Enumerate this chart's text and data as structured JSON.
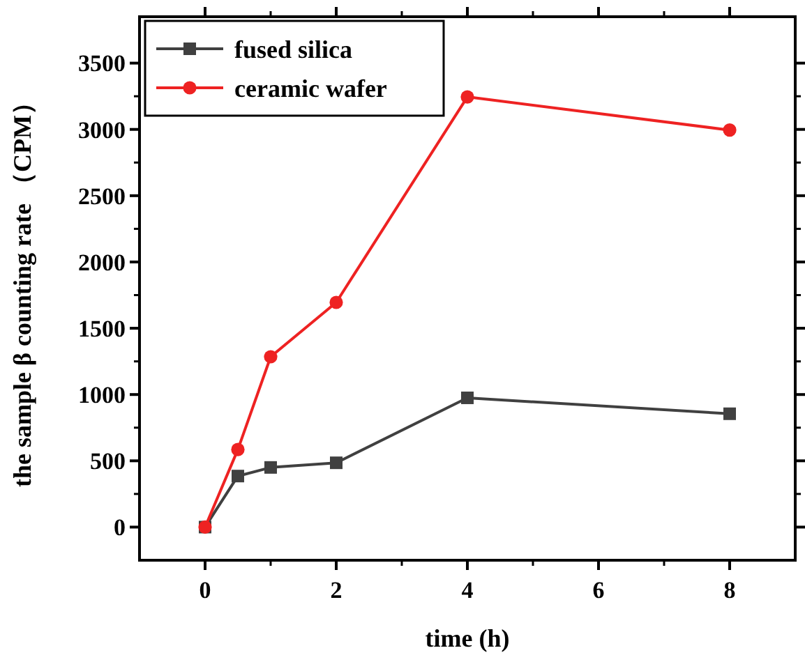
{
  "chart_data": {
    "type": "line",
    "xlabel": "time (h)",
    "ylabel": "the sample β counting rate （CPM）",
    "x": [
      0,
      0.5,
      1,
      2,
      4,
      8
    ],
    "series": [
      {
        "name": "fused silica",
        "color": "#404040",
        "marker": "square",
        "values": [
          0,
          385,
          450,
          485,
          975,
          855
        ]
      },
      {
        "name": "ceramic wafer",
        "color": "#ee2222",
        "marker": "circle",
        "values": [
          0,
          585,
          1285,
          1695,
          3245,
          2995
        ]
      }
    ],
    "xlim": [
      -1,
      9
    ],
    "xticks": [
      0,
      2,
      4,
      6,
      8
    ],
    "ylim": [
      -250,
      3850
    ],
    "yticks": [
      0,
      500,
      1000,
      1500,
      2000,
      2500,
      3000,
      3500
    ],
    "legend": "top left",
    "grid": false,
    "line_style": "solid"
  }
}
